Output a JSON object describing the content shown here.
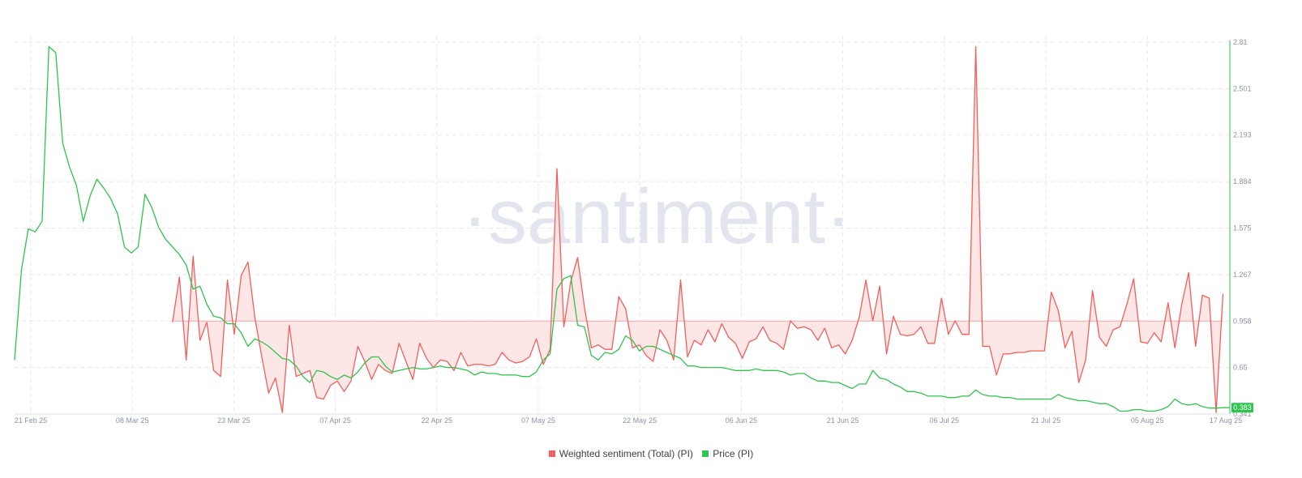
{
  "watermark": "·santiment·",
  "colors": {
    "sentiment": "#f25f5c",
    "sentiment_fill": "#fde2e2",
    "price": "#2fc34f",
    "grid": "#e6e8ee",
    "axis_text": "#8a93a6",
    "watermark": "#e3e5ee"
  },
  "chart_data": {
    "type": "line",
    "x_ticks": [
      "21 Feb 25",
      "08 Mar 25",
      "23 Mar 25",
      "07 Apr 25",
      "22 Apr 25",
      "07 May 25",
      "22 May 25",
      "06 Jun 25",
      "21 Jun 25",
      "06 Jul 25",
      "21 Jul 25",
      "05 Aug 25",
      "17 Aug 25"
    ],
    "y_ticks": [
      "2.81",
      "2.501",
      "2.193",
      "1.884",
      "1.575",
      "1.267",
      "0.958",
      "0.65",
      "0.341"
    ],
    "ylim": [
      0.341,
      2.81
    ],
    "price_current_label": "0.383",
    "sentiment_baseline": 0.958,
    "legend_placement": "bottom-center",
    "grid": true,
    "series": [
      {
        "name": "Weighted sentiment (Total) (PI)",
        "start_index": 23,
        "values": [
          0.95,
          1.25,
          0.7,
          1.39,
          0.83,
          0.95,
          0.63,
          0.59,
          1.23,
          0.87,
          1.26,
          1.35,
          0.98,
          0.72,
          0.48,
          0.58,
          0.35,
          0.93,
          0.59,
          0.61,
          0.63,
          0.45,
          0.44,
          0.53,
          0.56,
          0.49,
          0.56,
          0.79,
          0.69,
          0.57,
          0.67,
          0.63,
          0.61,
          0.81,
          0.69,
          0.57,
          0.81,
          0.71,
          0.65,
          0.7,
          0.69,
          0.63,
          0.75,
          0.66,
          0.67,
          0.67,
          0.66,
          0.67,
          0.75,
          0.7,
          0.68,
          0.69,
          0.72,
          0.84,
          0.67,
          0.77,
          1.97,
          0.92,
          1.22,
          1.38,
          1.05,
          0.78,
          0.8,
          0.77,
          0.77,
          1.12,
          1.04,
          0.78,
          0.8,
          0.73,
          0.69,
          0.9,
          0.83,
          0.7,
          1.23,
          0.72,
          0.83,
          0.8,
          0.9,
          0.82,
          0.94,
          0.85,
          0.81,
          0.71,
          0.82,
          0.84,
          0.92,
          0.83,
          0.81,
          0.77,
          0.96,
          0.91,
          0.92,
          0.9,
          0.83,
          0.91,
          0.78,
          0.8,
          0.74,
          0.83,
          0.98,
          1.23,
          0.96,
          1.19,
          0.74,
          0.99,
          0.87,
          0.86,
          0.87,
          0.92,
          0.81,
          0.81,
          1.11,
          0.87,
          0.96,
          0.87,
          0.87,
          2.78,
          0.79,
          0.79,
          0.6,
          0.74,
          0.74,
          0.75,
          0.75,
          0.76,
          0.76,
          0.76,
          1.15,
          1.03,
          0.78,
          0.89,
          0.55,
          0.7,
          1.16,
          0.85,
          0.79,
          0.9,
          0.92,
          1.07,
          1.24,
          0.82,
          0.81,
          0.88,
          0.82,
          1.08,
          0.78,
          1.07,
          1.28,
          0.79,
          1.13,
          1.11,
          0.35,
          1.14
        ]
      },
      {
        "name": "Price (PI)",
        "start_index": 0,
        "values": [
          0.7,
          1.3,
          1.57,
          1.55,
          1.62,
          2.78,
          2.74,
          2.14,
          1.98,
          1.86,
          1.62,
          1.79,
          1.9,
          1.84,
          1.77,
          1.67,
          1.45,
          1.41,
          1.45,
          1.8,
          1.71,
          1.58,
          1.5,
          1.45,
          1.4,
          1.33,
          1.17,
          1.19,
          1.07,
          0.99,
          0.98,
          0.94,
          0.94,
          0.88,
          0.79,
          0.84,
          0.82,
          0.79,
          0.75,
          0.71,
          0.7,
          0.66,
          0.59,
          0.55,
          0.63,
          0.62,
          0.59,
          0.57,
          0.6,
          0.58,
          0.62,
          0.68,
          0.72,
          0.72,
          0.66,
          0.62,
          0.63,
          0.64,
          0.65,
          0.64,
          0.64,
          0.65,
          0.66,
          0.65,
          0.65,
          0.64,
          0.63,
          0.6,
          0.62,
          0.61,
          0.61,
          0.6,
          0.6,
          0.6,
          0.59,
          0.59,
          0.62,
          0.7,
          0.74,
          1.17,
          1.24,
          1.26,
          0.93,
          0.92,
          0.73,
          0.7,
          0.75,
          0.74,
          0.77,
          0.86,
          0.83,
          0.76,
          0.79,
          0.79,
          0.77,
          0.75,
          0.73,
          0.71,
          0.66,
          0.66,
          0.65,
          0.65,
          0.65,
          0.65,
          0.64,
          0.63,
          0.63,
          0.63,
          0.64,
          0.63,
          0.63,
          0.63,
          0.62,
          0.6,
          0.61,
          0.61,
          0.58,
          0.56,
          0.56,
          0.55,
          0.55,
          0.53,
          0.51,
          0.54,
          0.54,
          0.63,
          0.58,
          0.57,
          0.54,
          0.52,
          0.49,
          0.49,
          0.48,
          0.46,
          0.46,
          0.46,
          0.45,
          0.45,
          0.46,
          0.46,
          0.5,
          0.47,
          0.46,
          0.46,
          0.45,
          0.45,
          0.44,
          0.44,
          0.44,
          0.44,
          0.44,
          0.44,
          0.47,
          0.45,
          0.44,
          0.43,
          0.43,
          0.42,
          0.41,
          0.41,
          0.39,
          0.36,
          0.36,
          0.37,
          0.37,
          0.36,
          0.36,
          0.37,
          0.39,
          0.44,
          0.41,
          0.4,
          0.41,
          0.39,
          0.38,
          0.38,
          0.383,
          0.383
        ]
      }
    ]
  }
}
